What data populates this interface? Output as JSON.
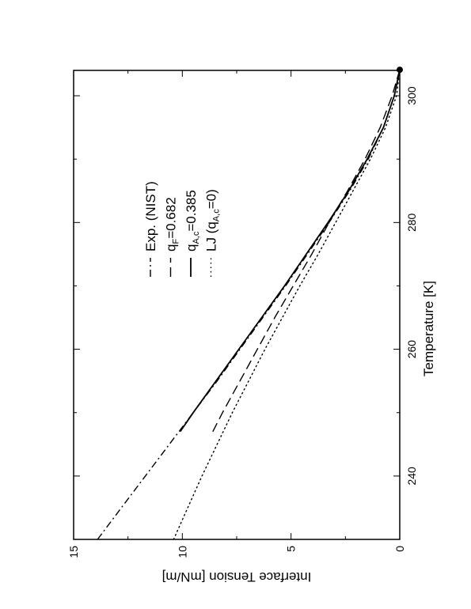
{
  "chart_data": {
    "type": "line",
    "xlabel": "Temperature [K]",
    "ylabel": "Interface Tension [mN/m]",
    "xlim": [
      230,
      304
    ],
    "ylim": [
      0,
      15
    ],
    "xticks": [
      240,
      260,
      280,
      300
    ],
    "yticks": [
      0,
      5,
      10,
      15
    ],
    "grid": false,
    "legend_position": "top-right",
    "critical_point": {
      "x": 304.1,
      "y": 0
    },
    "series": [
      {
        "name": "Exp. (NIST)",
        "style": "dash-dot",
        "x": [
          230,
          235,
          240,
          245,
          250,
          255,
          260,
          265,
          270,
          275,
          280,
          285,
          290,
          295,
          300,
          304.1
        ],
        "y": [
          13.9,
          12.8,
          11.7,
          10.6,
          9.5,
          8.4,
          7.35,
          6.3,
          5.25,
          4.25,
          3.25,
          2.3,
          1.45,
          0.75,
          0.25,
          0
        ]
      },
      {
        "name": "q",
        "sub": "F",
        "value_text": "=0.682",
        "style": "dashed",
        "x": [
          247,
          250,
          255,
          260,
          265,
          270,
          275,
          280,
          285,
          290,
          295,
          300,
          304.1
        ],
        "y": [
          8.6,
          8.15,
          7.35,
          6.55,
          5.75,
          4.9,
          4.05,
          3.25,
          2.4,
          1.6,
          0.9,
          0.35,
          0
        ]
      },
      {
        "name": "q",
        "sub": "A,c",
        "value_text": "=0.385",
        "style": "solid",
        "x": [
          247,
          250,
          255,
          260,
          265,
          270,
          275,
          280,
          285,
          290,
          295,
          300,
          304.1
        ],
        "y": [
          10.1,
          9.5,
          8.45,
          7.4,
          6.35,
          5.3,
          4.3,
          3.3,
          2.35,
          1.5,
          0.75,
          0.25,
          0
        ]
      },
      {
        "name": "LJ (q",
        "sub": "A,c",
        "value_text": "=0)",
        "style": "dotted",
        "x": [
          230,
          235,
          240,
          245,
          250,
          255,
          260,
          265,
          270,
          275,
          280,
          285,
          290,
          295,
          300,
          304.1
        ],
        "y": [
          10.4,
          9.75,
          9.1,
          8.4,
          7.7,
          6.95,
          6.2,
          5.4,
          4.6,
          3.75,
          2.95,
          2.15,
          1.35,
          0.65,
          0.15,
          0
        ]
      }
    ]
  }
}
